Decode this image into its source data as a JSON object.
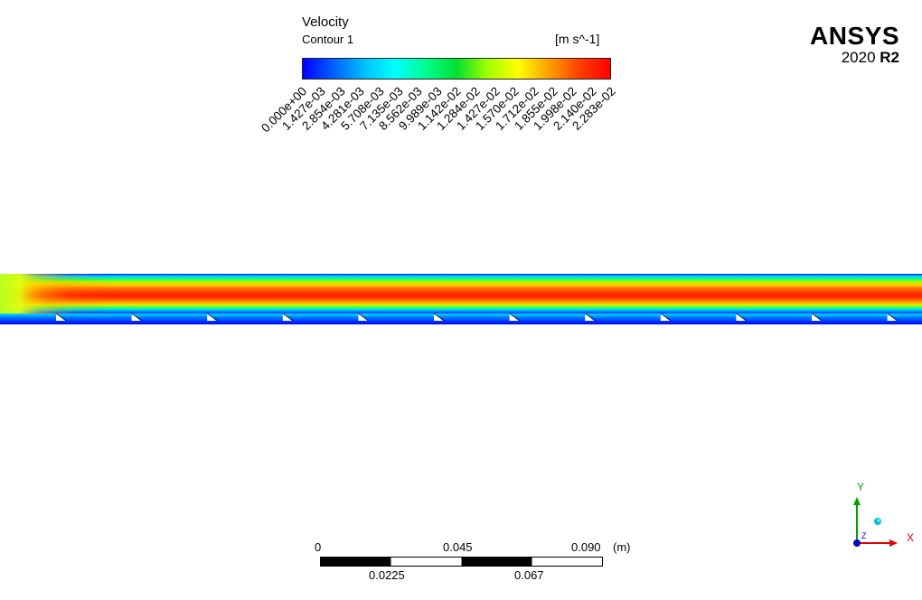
{
  "legend": {
    "title": "Velocity",
    "subtitle": "Contour 1",
    "units": "[m s^-1]",
    "ticks": [
      "0.000e+00",
      "1.427e-03",
      "2.854e-03",
      "4.281e-03",
      "5.708e-03",
      "7.135e-03",
      "8.562e-03",
      "9.989e-03",
      "1.142e-02",
      "1.284e-02",
      "1.427e-02",
      "1.570e-02",
      "1.712e-02",
      "1.855e-02",
      "1.998e-02",
      "2.140e-02",
      "2.283e-02"
    ],
    "colors": [
      "#0000ff",
      "#0060ff",
      "#00c0ff",
      "#00ffff",
      "#00ff90",
      "#00e030",
      "#a0ff00",
      "#ffff00",
      "#ffa000",
      "#ff4000",
      "#ff0000"
    ]
  },
  "logo": {
    "word": "ANSYS",
    "year": "2020",
    "release": "R2"
  },
  "scale_bar": {
    "top_labels": [
      "0",
      "0.045",
      "0.090"
    ],
    "bottom_labels": [
      "0.0225",
      "0.067"
    ],
    "unit": "(m)"
  },
  "triad": {
    "x_label": "X",
    "y_label": "Y",
    "z_label": "Z",
    "x_color": "#e00000",
    "y_color": "#00a000",
    "z_color": "#0000c0"
  },
  "contour": {
    "baffle_count": 12
  }
}
